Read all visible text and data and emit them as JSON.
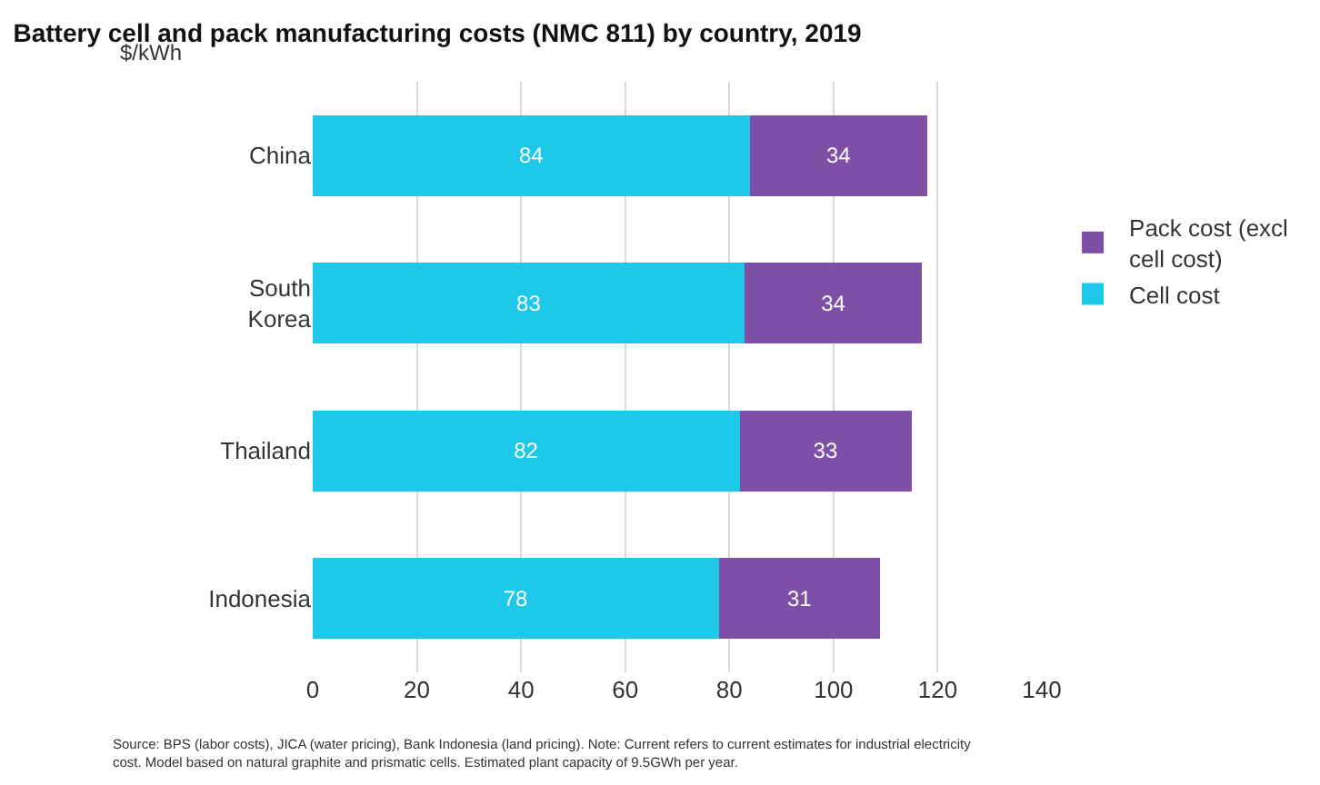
{
  "chart_data": {
    "type": "bar",
    "orientation": "horizontal",
    "stacked": true,
    "title": "Battery cell and pack manufacturing costs (NMC 811) by country, 2019",
    "ylabel": "$/kWh",
    "categories": [
      "China",
      "South Korea",
      "Thailand",
      "Indonesia"
    ],
    "series": [
      {
        "name": "Cell cost",
        "color": "#1ec8e8",
        "values": [
          84,
          83,
          82,
          78
        ]
      },
      {
        "name": "Pack cost (excl cell cost)",
        "color": "#7d4fa6",
        "values": [
          34,
          34,
          33,
          31
        ]
      }
    ],
    "data_labels": true,
    "xlim": [
      0,
      140
    ],
    "xticks": [
      0,
      20,
      40,
      60,
      80,
      100,
      120,
      140
    ],
    "grid": "x",
    "legend": "right",
    "annotations": [
      "Source: BPS (labor costs), JICA (water pricing), Bank Indonesia (land pricing). Note: Current refers to current estimates for industrial electricity cost. Model based on natural graphite and prismatic cells. Estimated plant capacity of 9.5GWh per year."
    ]
  }
}
